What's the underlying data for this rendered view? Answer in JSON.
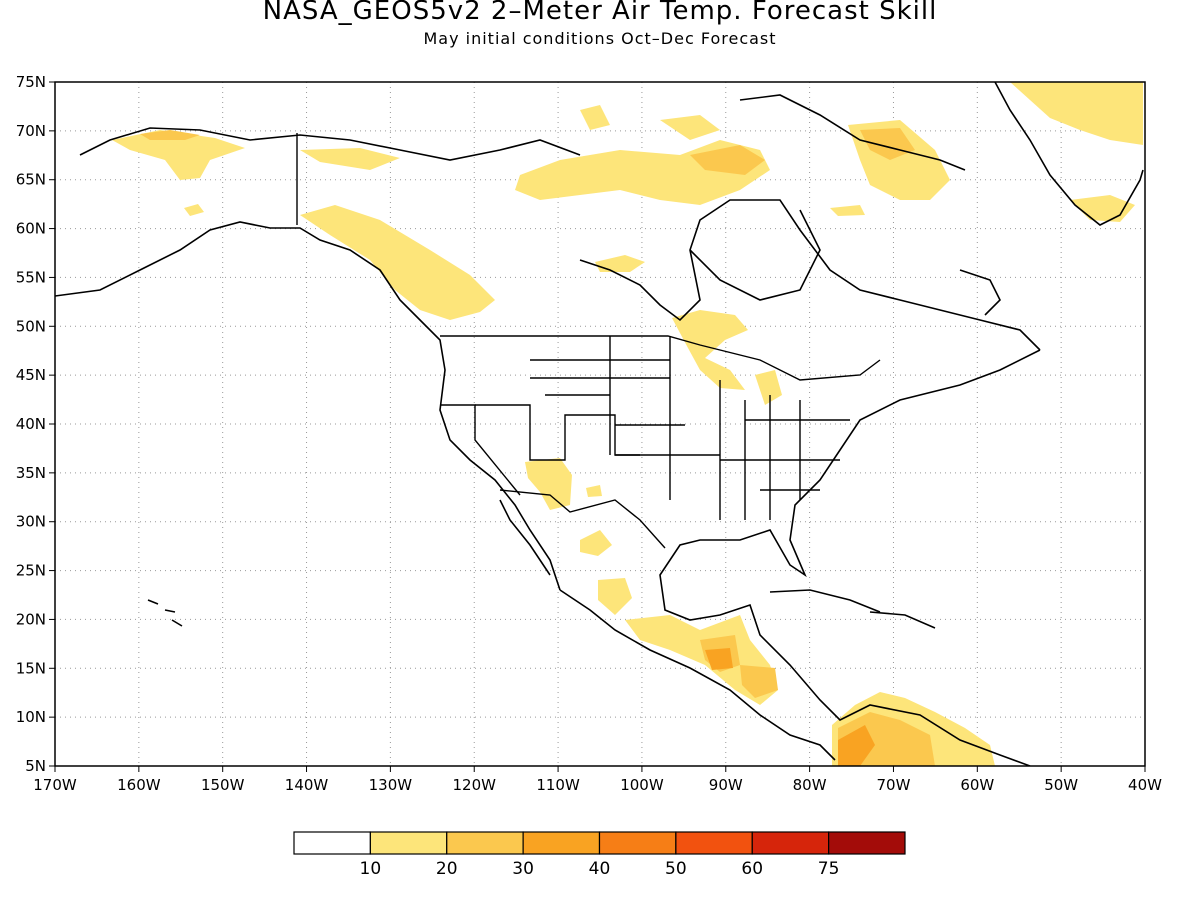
{
  "title": "NASA_GEOS5v2 2–Meter Air Temp. Forecast Skill",
  "subtitle": "May initial conditions  Oct–Dec Forecast",
  "map": {
    "lon_range": [
      -170,
      -40
    ],
    "lat_range": [
      5,
      75
    ],
    "gridlines": "dotted",
    "lon_ticks": [
      "170W",
      "160W",
      "150W",
      "140W",
      "130W",
      "120W",
      "110W",
      "100W",
      "90W",
      "80W",
      "70W",
      "60W",
      "50W",
      "40W"
    ],
    "lat_ticks": [
      "5N",
      "10N",
      "15N",
      "20N",
      "25N",
      "30N",
      "35N",
      "40N",
      "45N",
      "50N",
      "55N",
      "60N",
      "65N",
      "70N",
      "75N"
    ]
  },
  "colorbar": {
    "colors": [
      "#ffffff",
      "#fde57a",
      "#fbc84e",
      "#f9a322",
      "#f67e16",
      "#f2520f",
      "#d6250b",
      "#a30c09"
    ],
    "labels": [
      "10",
      "20",
      "30",
      "40",
      "50",
      "60",
      "75"
    ]
  }
}
